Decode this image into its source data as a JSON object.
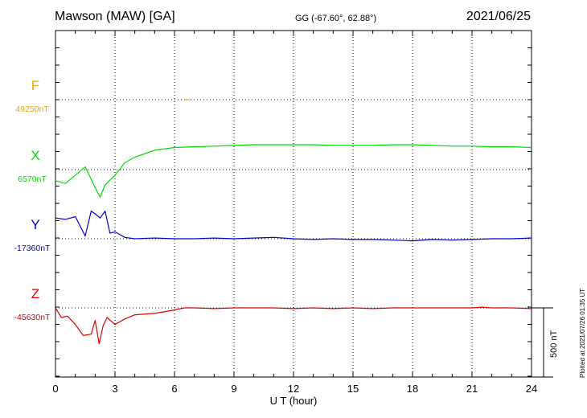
{
  "header": {
    "station": "Mawson (MAW)  [GA]",
    "coords": "GG (-67.60°,  62.88°)",
    "date": "2021/06/25"
  },
  "footer": {
    "plotted_note": "Plotted at 2021/07/26 01:35 UT"
  },
  "colors": {
    "F": "#f0a800",
    "X": "#00dd00",
    "Y": "#0000cc",
    "Z": "#dd0000"
  },
  "chart_data": {
    "type": "line",
    "xlabel": "U T (hour)",
    "xlim": [
      0,
      24
    ],
    "xticks": [
      "0",
      "3",
      "6",
      "9",
      "12",
      "15",
      "18",
      "21",
      "24"
    ],
    "scale_bar": {
      "label": "500 nT",
      "value_nT": 500
    },
    "grid": true,
    "series": [
      {
        "name": "F",
        "baseline_label": "49250nT",
        "baseline_nT": 49250,
        "color": "#f0a800",
        "x": [
          6.5,
          6.75
        ],
        "y": [
          49250,
          49250
        ]
      },
      {
        "name": "X",
        "baseline_label": "6570nT",
        "baseline_nT": 6570,
        "color": "#00dd00",
        "x": [
          0,
          0.5,
          1.0,
          1.5,
          2.0,
          2.25,
          2.5,
          3.0,
          3.5,
          4.0,
          5.0,
          6.0,
          7.0,
          8.0,
          9.0,
          10.0,
          11.0,
          12.0,
          13.0,
          14.0,
          15.0,
          16.0,
          17.0,
          18.0,
          19.0,
          20.0,
          21.0,
          22.0,
          23.0,
          24.0
        ],
        "y": [
          6490,
          6470,
          6530,
          6590,
          6440,
          6370,
          6460,
          6530,
          6620,
          6660,
          6710,
          6730,
          6735,
          6740,
          6745,
          6750,
          6750,
          6750,
          6750,
          6745,
          6745,
          6745,
          6750,
          6750,
          6745,
          6740,
          6740,
          6735,
          6735,
          6730
        ]
      },
      {
        "name": "Y",
        "baseline_label": "-17360nT",
        "baseline_nT": -17360,
        "color": "#0000cc",
        "x": [
          0,
          0.5,
          1.0,
          1.5,
          1.8,
          2.0,
          2.25,
          2.5,
          2.75,
          3.0,
          3.5,
          4.0,
          5.0,
          6.0,
          7.0,
          8.0,
          9.0,
          10.0,
          11.0,
          12.0,
          13.0,
          14.0,
          15.0,
          16.0,
          17.0,
          18.0,
          19.0,
          20.0,
          21.0,
          22.0,
          23.0,
          24.0
        ],
        "y": [
          -17210,
          -17220,
          -17200,
          -17340,
          -17160,
          -17180,
          -17210,
          -17160,
          -17320,
          -17310,
          -17350,
          -17360,
          -17355,
          -17360,
          -17360,
          -17355,
          -17360,
          -17355,
          -17350,
          -17360,
          -17365,
          -17360,
          -17365,
          -17365,
          -17370,
          -17375,
          -17365,
          -17370,
          -17365,
          -17360,
          -17360,
          -17355
        ]
      },
      {
        "name": "Z",
        "baseline_label": "-45630nT",
        "baseline_nT": -45630,
        "color": "#dd0000",
        "x": [
          0,
          0.3,
          0.6,
          1.0,
          1.4,
          1.8,
          2.0,
          2.2,
          2.4,
          2.6,
          3.0,
          3.5,
          4.0,
          5.0,
          6.0,
          6.5,
          7.0,
          8.0,
          9.0,
          10.0,
          11.0,
          12.0,
          13.0,
          14.0,
          15.0,
          16.0,
          17.0,
          18.0,
          19.0,
          20.0,
          21.0,
          21.5,
          22.0,
          23.0,
          24.0
        ],
        "y": [
          -45630,
          -45700,
          -45690,
          -45750,
          -45830,
          -45820,
          -45720,
          -45890,
          -45760,
          -45700,
          -45750,
          -45710,
          -45680,
          -45670,
          -45645,
          -45630,
          -45630,
          -45635,
          -45630,
          -45630,
          -45630,
          -45635,
          -45630,
          -45635,
          -45630,
          -45635,
          -45630,
          -45630,
          -45630,
          -45630,
          -45630,
          -45625,
          -45630,
          -45630,
          -45635
        ]
      }
    ]
  }
}
